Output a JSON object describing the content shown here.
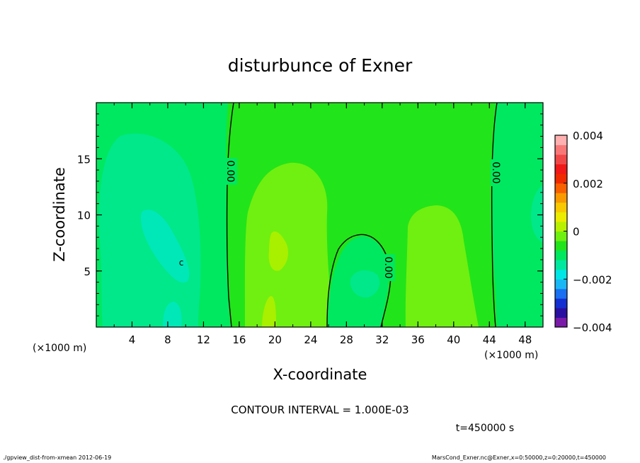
{
  "chart_data": {
    "type": "heatmap",
    "title": "disturbunce of Exner",
    "xlabel": "X-coordinate",
    "ylabel": "Z-coordinate",
    "x_unit_left": "(×1000 m)",
    "x_unit_right": "(×1000 m)",
    "xlim": [
      0,
      50
    ],
    "ylim": [
      0,
      20
    ],
    "x_ticks": [
      4,
      8,
      12,
      16,
      20,
      24,
      28,
      32,
      36,
      40,
      44,
      48
    ],
    "y_ticks": [
      5,
      10,
      15
    ],
    "contour_interval_label": "CONTOUR INTERVAL = 1.000E-03",
    "time_label": "t=450000 s",
    "contour_labels": [
      "0.00",
      "0.00",
      "0.00"
    ],
    "small_label": "c",
    "colorbar": {
      "ticks": [
        "0.004",
        "0.002",
        "0",
        "−0.002",
        "−0.004"
      ],
      "range": [
        -0.004,
        0.004
      ],
      "colors": [
        "#7a1aa8",
        "#2a10a0",
        "#1530d0",
        "#1a70f0",
        "#19b8f5",
        "#00e6e6",
        "#00e8a0",
        "#00e860",
        "#22e41a",
        "#70f010",
        "#b8f000",
        "#ecec00",
        "#f8c800",
        "#f89a00",
        "#f86000",
        "#f02a00",
        "#f01818",
        "#f04848",
        "#f87878",
        "#ffb0b0"
      ]
    },
    "regions": [
      {
        "name": "cool-left-upper",
        "value": -0.001,
        "color": "#00e88a"
      },
      {
        "name": "cool-left-core",
        "value": -0.0015,
        "color": "#00e8b8"
      },
      {
        "name": "cool-left-bottom",
        "value": -0.0015,
        "color": "#00e8b8"
      },
      {
        "name": "cool-left-edge",
        "value": -0.0005,
        "color": "#00e860"
      },
      {
        "name": "warm-center-left",
        "value": 0.0005,
        "color": "#70f010"
      },
      {
        "name": "warm-center-left-core",
        "value": 0.001,
        "color": "#a8f000"
      },
      {
        "name": "cool-center-bubble",
        "value": -0.0005,
        "color": "#00e860"
      },
      {
        "name": "cool-center-core",
        "value": -0.001,
        "color": "#00e88a"
      },
      {
        "name": "warm-center-right",
        "value": 0.0005,
        "color": "#70f010"
      },
      {
        "name": "cool-right-band",
        "value": -0.0005,
        "color": "#00e860"
      },
      {
        "name": "cool-right-edge",
        "value": -0.001,
        "color": "#00e88a"
      }
    ]
  },
  "footer": {
    "left": "./gpview_dist-from-xmean  2012-06-19",
    "right": "MarsCond_Exner.nc@Exner,x=0:50000,z=0:20000,t=450000"
  }
}
